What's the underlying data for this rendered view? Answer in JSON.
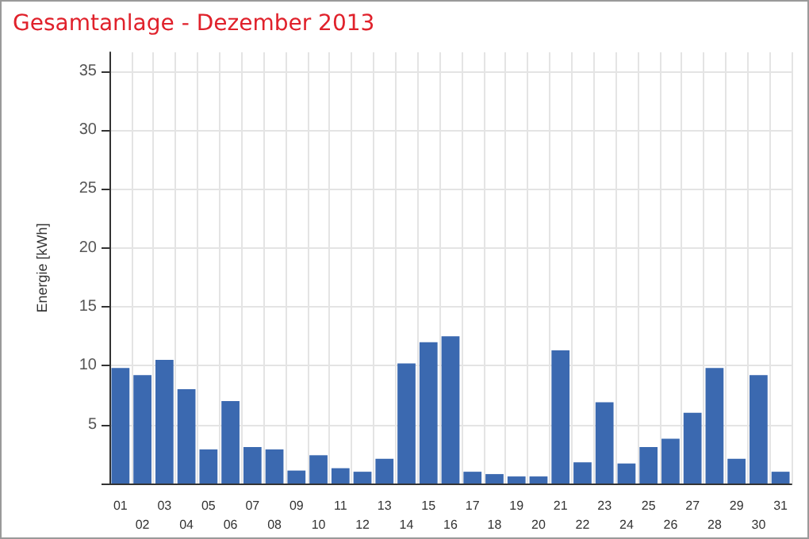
{
  "chart_data": {
    "type": "bar",
    "title": "Gesamtanlage - Dezember 2013",
    "ylabel": "Energie [kWh]",
    "categories": [
      "01",
      "02",
      "03",
      "04",
      "05",
      "06",
      "07",
      "08",
      "09",
      "10",
      "11",
      "12",
      "13",
      "14",
      "15",
      "16",
      "17",
      "18",
      "19",
      "20",
      "21",
      "22",
      "23",
      "24",
      "25",
      "26",
      "27",
      "28",
      "29",
      "30",
      "31"
    ],
    "values": [
      9.8,
      9.2,
      10.5,
      8.0,
      2.9,
      7.0,
      3.1,
      2.9,
      1.1,
      2.4,
      1.3,
      1.0,
      2.1,
      10.2,
      12.0,
      12.5,
      1.0,
      0.8,
      0.6,
      0.6,
      11.3,
      1.8,
      6.9,
      1.7,
      3.1,
      3.8,
      6.0,
      9.8,
      2.1,
      9.2,
      1.0
    ],
    "color": "#3b69b0",
    "ylim": [
      0,
      36.6
    ],
    "yticks": [
      {
        "value": 0,
        "label": null
      },
      5,
      10,
      15,
      20,
      25,
      30,
      35
    ],
    "grid": true
  }
}
